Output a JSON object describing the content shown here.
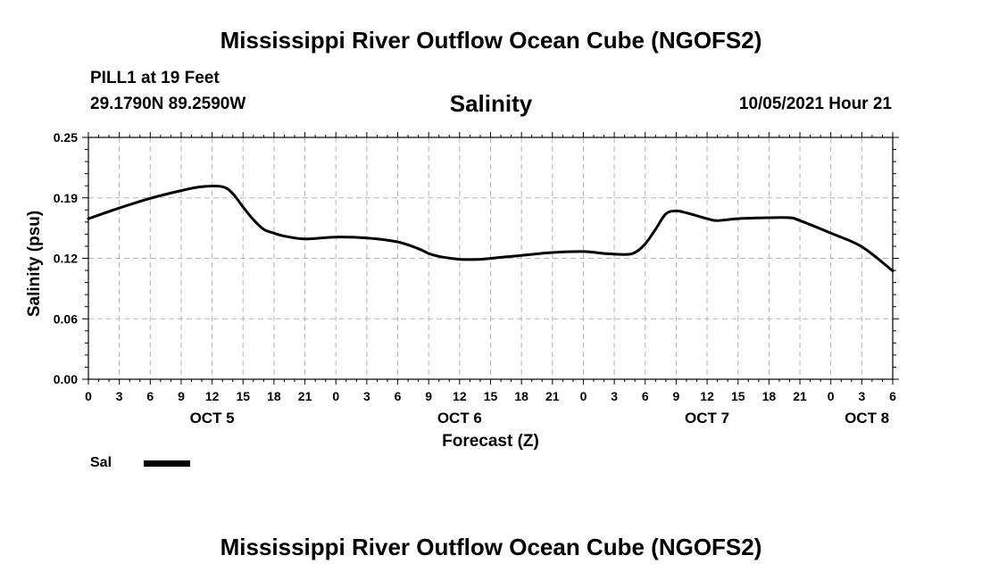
{
  "header": {
    "title": "Mississippi River Outflow Ocean Cube (NGOFS2)",
    "station": "PILL1 at 19 Feet",
    "coords": "29.1790N  89.2590W",
    "variable": "Salinity",
    "datetime": "10/05/2021 Hour 21"
  },
  "footer": {
    "title": "Mississippi River Outflow Ocean Cube (NGOFS2)"
  },
  "legend": {
    "label": "Sal",
    "color": "#000000"
  },
  "chart_data": {
    "type": "line",
    "title": "Salinity",
    "xlabel": "Forecast (Z)",
    "ylabel": "Salinity (psu)",
    "ylim": [
      0.0,
      0.25
    ],
    "xlim": [
      0,
      78
    ],
    "y_ticks": [
      "0.00",
      "0.06",
      "0.12",
      "0.19",
      "0.25"
    ],
    "y_tick_values": [
      0.0,
      0.0625,
      0.125,
      0.1875,
      0.25
    ],
    "x_ticks": [
      {
        "hour": 0,
        "label": "0"
      },
      {
        "hour": 3,
        "label": "3"
      },
      {
        "hour": 6,
        "label": "6"
      },
      {
        "hour": 9,
        "label": "9"
      },
      {
        "hour": 12,
        "label": "12"
      },
      {
        "hour": 15,
        "label": "15"
      },
      {
        "hour": 18,
        "label": "18"
      },
      {
        "hour": 21,
        "label": "21"
      },
      {
        "hour": 24,
        "label": "0"
      },
      {
        "hour": 27,
        "label": "3"
      },
      {
        "hour": 30,
        "label": "6"
      },
      {
        "hour": 33,
        "label": "9"
      },
      {
        "hour": 36,
        "label": "12"
      },
      {
        "hour": 39,
        "label": "15"
      },
      {
        "hour": 42,
        "label": "18"
      },
      {
        "hour": 45,
        "label": "21"
      },
      {
        "hour": 48,
        "label": "0"
      },
      {
        "hour": 51,
        "label": "3"
      },
      {
        "hour": 54,
        "label": "6"
      },
      {
        "hour": 57,
        "label": "9"
      },
      {
        "hour": 60,
        "label": "12"
      },
      {
        "hour": 63,
        "label": "15"
      },
      {
        "hour": 66,
        "label": "18"
      },
      {
        "hour": 69,
        "label": "21"
      },
      {
        "hour": 72,
        "label": "0"
      },
      {
        "hour": 75,
        "label": "3"
      },
      {
        "hour": 78,
        "label": "6"
      }
    ],
    "date_labels": [
      {
        "hour": 12,
        "label": "OCT 5"
      },
      {
        "hour": 36,
        "label": "OCT 6"
      },
      {
        "hour": 60,
        "label": "OCT 7"
      },
      {
        "hour": 75.5,
        "label": "OCT 8"
      }
    ],
    "grid": true,
    "series": [
      {
        "name": "Sal",
        "color": "#000000",
        "x": [
          0,
          3,
          6,
          9,
          11,
          13,
          14,
          15,
          16,
          17,
          18,
          19,
          21,
          24,
          27,
          30,
          32,
          33,
          34,
          36,
          38,
          40,
          42,
          45,
          48,
          50,
          52,
          53,
          54,
          55,
          56,
          57,
          58,
          60,
          61,
          63,
          66,
          68,
          69,
          72,
          75,
          78
        ],
        "y": [
          0.166,
          0.177,
          0.187,
          0.195,
          0.199,
          0.199,
          0.192,
          0.178,
          0.165,
          0.155,
          0.151,
          0.148,
          0.145,
          0.147,
          0.146,
          0.142,
          0.135,
          0.13,
          0.127,
          0.124,
          0.124,
          0.126,
          0.128,
          0.131,
          0.132,
          0.13,
          0.129,
          0.131,
          0.14,
          0.155,
          0.171,
          0.174,
          0.172,
          0.166,
          0.164,
          0.166,
          0.167,
          0.167,
          0.164,
          0.151,
          0.137,
          0.112
        ]
      }
    ]
  }
}
